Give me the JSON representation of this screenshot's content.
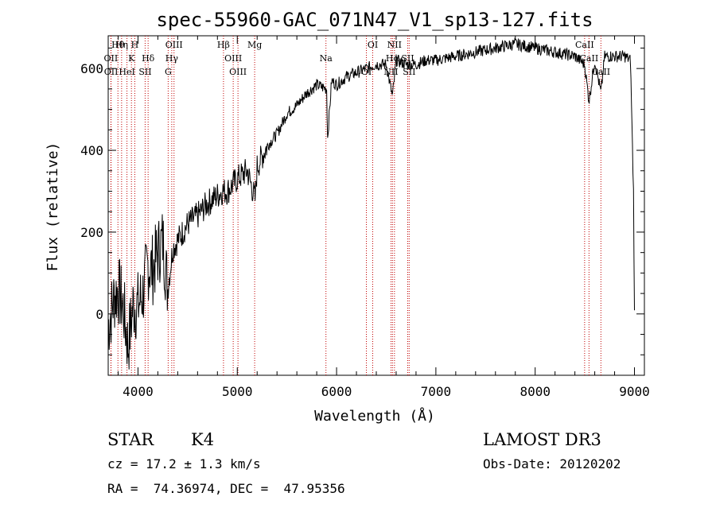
{
  "chart_data": {
    "type": "line",
    "title": "spec-55960-GAC_071N47_V1_sp13-127.fits",
    "xlabel": "Wavelength (Å)",
    "ylabel": "Flux (relative)",
    "xlim": [
      3700,
      9100
    ],
    "ylim": [
      -150,
      680
    ],
    "x_ticks": [
      4000,
      5000,
      6000,
      7000,
      8000,
      9000
    ],
    "y_ticks": [
      0,
      200,
      400,
      600
    ],
    "grid": false,
    "series": [
      {
        "name": "flux",
        "x": [
          3700,
          3760,
          3800,
          3850,
          3900,
          3950,
          4000,
          4050,
          4100,
          4150,
          4200,
          4250,
          4300,
          4350,
          4400,
          4500,
          4600,
          4700,
          4800,
          4850,
          4900,
          5000,
          5100,
          5180,
          5200,
          5300,
          5400,
          5500,
          5600,
          5700,
          5800,
          5900,
          5910,
          5950,
          6000,
          6100,
          6200,
          6300,
          6400,
          6500,
          6563,
          6600,
          6700,
          6800,
          6900,
          7000,
          7200,
          7400,
          7600,
          7800,
          8000,
          8200,
          8400,
          8498,
          8542,
          8600,
          8662,
          8700,
          8800,
          8900,
          8960,
          8990,
          9000
        ],
        "y": [
          -30,
          40,
          60,
          20,
          -80,
          20,
          20,
          50,
          120,
          110,
          150,
          180,
          60,
          160,
          180,
          220,
          240,
          270,
          290,
          300,
          300,
          330,
          350,
          280,
          360,
          410,
          440,
          490,
          510,
          540,
          560,
          550,
          430,
          570,
          560,
          580,
          590,
          600,
          610,
          610,
          530,
          620,
          610,
          610,
          620,
          620,
          630,
          640,
          650,
          660,
          650,
          640,
          630,
          610,
          520,
          620,
          540,
          630,
          630,
          630,
          620,
          300,
          0
        ]
      }
    ],
    "lines": [
      {
        "label": "Hθ",
        "x": 3798
      },
      {
        "label": "OII",
        "x": 3727
      },
      {
        "label": "OII",
        "x": 3729
      },
      {
        "label": "Hη",
        "x": 3835
      },
      {
        "label": "K",
        "x": 3934
      },
      {
        "label": "HeI",
        "x": 3889
      },
      {
        "label": "H",
        "x": 3968
      },
      {
        "label": "Hδ",
        "x": 4102
      },
      {
        "label": "SII",
        "x": 4072
      },
      {
        "label": "OIII",
        "x": 4363
      },
      {
        "label": "Hγ",
        "x": 4340
      },
      {
        "label": "G",
        "x": 4304
      },
      {
        "label": "Hβ",
        "x": 4861
      },
      {
        "label": "OIII",
        "x": 4959
      },
      {
        "label": "OIII",
        "x": 5007
      },
      {
        "label": "Mg",
        "x": 5175
      },
      {
        "label": "Na",
        "x": 5893
      },
      {
        "label": "OI",
        "x": 6300
      },
      {
        "label": "OI",
        "x": 6364
      },
      {
        "label": "Hα",
        "x": 6563
      },
      {
        "label": "NII",
        "x": 6548
      },
      {
        "label": "NII",
        "x": 6583
      },
      {
        "label": "SII",
        "x": 6716
      },
      {
        "label": "SII",
        "x": 6731
      },
      {
        "label": "CaII",
        "x": 8498
      },
      {
        "label": "CaII",
        "x": 8542
      },
      {
        "label": "CaII",
        "x": 8662
      }
    ]
  },
  "info": {
    "class_label": "STAR",
    "subclass_label": "K4",
    "survey_label": "LAMOST DR3",
    "cz_line": "cz = 17.2 ± 1.3 km/s",
    "obs_date_line": "Obs-Date: 20120202",
    "radec_line": "RA =  74.36974, DEC =  47.95356"
  },
  "colors": {
    "spectrum": "#000000",
    "line_marker": "#c00000",
    "axis": "#000000"
  }
}
